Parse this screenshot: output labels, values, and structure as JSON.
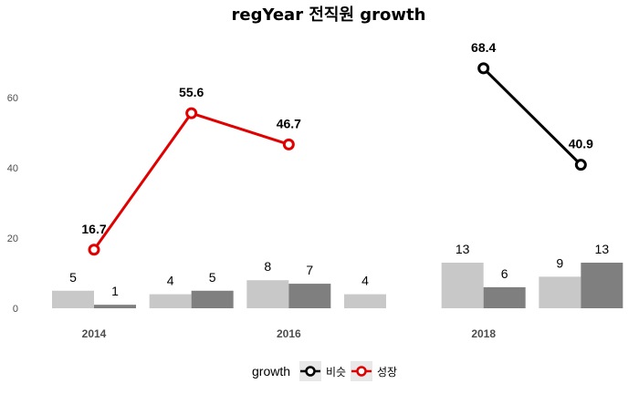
{
  "chart_data": {
    "type": "bar+line",
    "title": "regYear 전직원 growth",
    "xlabel": "",
    "ylabel": "",
    "ylim": [
      0,
      75
    ],
    "yticks": [
      0,
      20,
      40,
      60
    ],
    "grid": false,
    "x_tick_labels": [
      {
        "label": "2014",
        "at": 0
      },
      {
        "label": "2016",
        "at": 2
      },
      {
        "label": "2018",
        "at": 4
      }
    ],
    "bar_series": [
      {
        "color": "#c8c8c8",
        "values": [
          5,
          4,
          8,
          4,
          13,
          9
        ]
      },
      {
        "color": "#7f7f7f",
        "values": [
          1,
          5,
          7,
          null,
          6,
          13
        ]
      }
    ],
    "line_series": [
      {
        "name": "성장",
        "color": "#e00000",
        "points": [
          {
            "x": 0,
            "y": 16.7
          },
          {
            "x": 1,
            "y": 55.6
          },
          {
            "x": 2,
            "y": 46.7
          }
        ]
      },
      {
        "name": "비슷",
        "color": "#000000",
        "points": [
          {
            "x": 4,
            "y": 68.4
          },
          {
            "x": 5,
            "y": 40.9
          }
        ]
      }
    ],
    "legend": {
      "title": "growth",
      "position": "bottom",
      "items": [
        {
          "label": "비슷",
          "color": "#000000"
        },
        {
          "label": "성장",
          "color": "#e00000"
        }
      ]
    }
  }
}
